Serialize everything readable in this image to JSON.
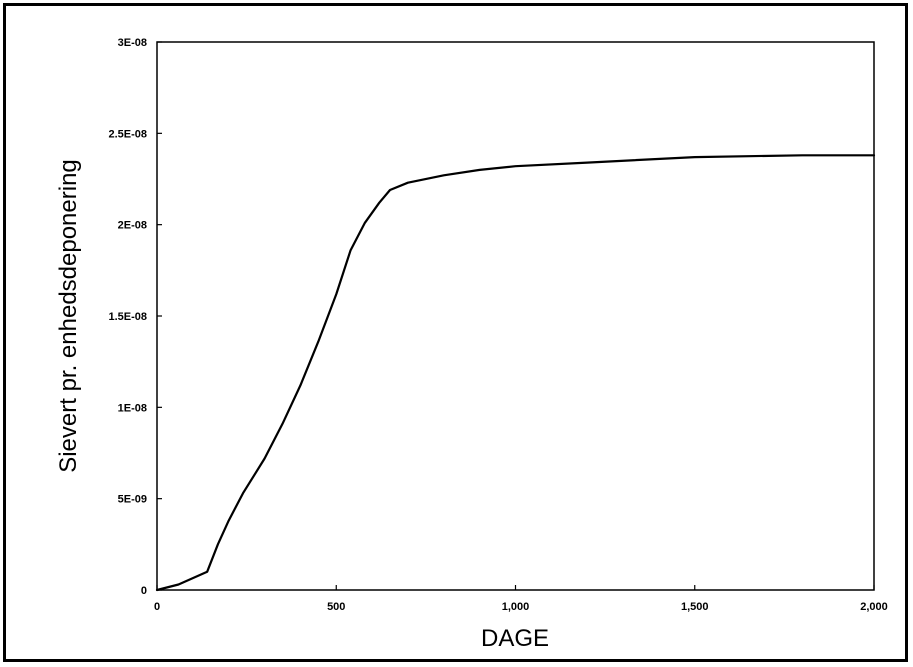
{
  "chart_data": {
    "type": "line",
    "title": "",
    "xlabel": "DAGE",
    "ylabel": "Sievert pr. enhedsdeponering",
    "xlim": [
      0,
      2000
    ],
    "ylim": [
      0,
      3e-08
    ],
    "x_ticks": [
      {
        "value": 0,
        "label": "0"
      },
      {
        "value": 500,
        "label": "500"
      },
      {
        "value": 1000,
        "label": "1,000"
      },
      {
        "value": 1500,
        "label": "1,500"
      },
      {
        "value": 2000,
        "label": "2,000"
      }
    ],
    "y_ticks": [
      {
        "value": 0,
        "label": "0"
      },
      {
        "value": 5e-09,
        "label": "5E-09"
      },
      {
        "value": 1e-08,
        "label": "1E-08"
      },
      {
        "value": 1.5e-08,
        "label": "1.5E-08"
      },
      {
        "value": 2e-08,
        "label": "2E-08"
      },
      {
        "value": 2.5e-08,
        "label": "2.5E-08"
      },
      {
        "value": 3e-08,
        "label": "3E-08"
      }
    ],
    "grid": false,
    "series": [
      {
        "color": "#000000",
        "points": [
          [
            0,
            0
          ],
          [
            60,
            3e-10
          ],
          [
            140,
            1e-09
          ],
          [
            170,
            2.5e-09
          ],
          [
            200,
            3.8e-09
          ],
          [
            240,
            5.3e-09
          ],
          [
            300,
            7.2e-09
          ],
          [
            350,
            9.1e-09
          ],
          [
            400,
            1.12e-08
          ],
          [
            450,
            1.36e-08
          ],
          [
            500,
            1.62e-08
          ],
          [
            540,
            1.86e-08
          ],
          [
            580,
            2.01e-08
          ],
          [
            620,
            2.12e-08
          ],
          [
            650,
            2.19e-08
          ],
          [
            700,
            2.23e-08
          ],
          [
            800,
            2.27e-08
          ],
          [
            900,
            2.3e-08
          ],
          [
            1000,
            2.32e-08
          ],
          [
            1200,
            2.34e-08
          ],
          [
            1500,
            2.37e-08
          ],
          [
            1800,
            2.38e-08
          ],
          [
            2000,
            2.38e-08
          ]
        ]
      }
    ]
  }
}
